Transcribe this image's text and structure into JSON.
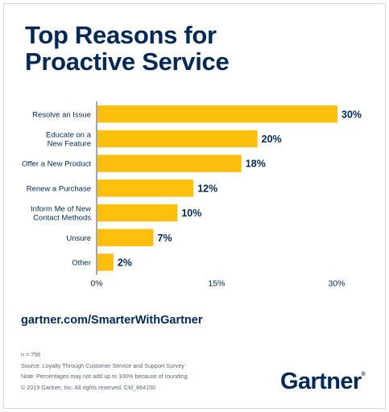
{
  "header": {
    "title_line1": "Top Reasons for",
    "title_line2": "Proactive Service"
  },
  "chart_data": {
    "type": "bar",
    "orientation": "horizontal",
    "categories": [
      [
        "Resolve an Issue"
      ],
      [
        "Educate on a",
        "New Feature"
      ],
      [
        "Offer a New Product"
      ],
      [
        "Renew a Purchase"
      ],
      [
        "Inform Me of New",
        "Contact Methods"
      ],
      [
        "Unsure"
      ],
      [
        "Other"
      ]
    ],
    "values": [
      30,
      20,
      18,
      12,
      10,
      7,
      2
    ],
    "value_labels": [
      "30%",
      "20%",
      "18%",
      "12%",
      "10%",
      "7%",
      "2%"
    ],
    "x_ticks": [
      0,
      15,
      30
    ],
    "x_tick_labels": [
      "0%",
      "15%",
      "30%"
    ],
    "xlim": [
      0,
      30
    ],
    "grid": false,
    "bar_color": "#ffbf0f",
    "text_color": "#002856"
  },
  "footer": {
    "link": "gartner.com/SmarterWithGartner",
    "notes": [
      "n = 756",
      "Source: Loyalty Through Customer Service and Support Survey",
      "Note: Percentages may not add up to 100% because of rounding.",
      "© 2019 Gartner, Inc. All rights reserved. CM_664150"
    ],
    "logo": "Gartner",
    "logo_mark": "®"
  }
}
